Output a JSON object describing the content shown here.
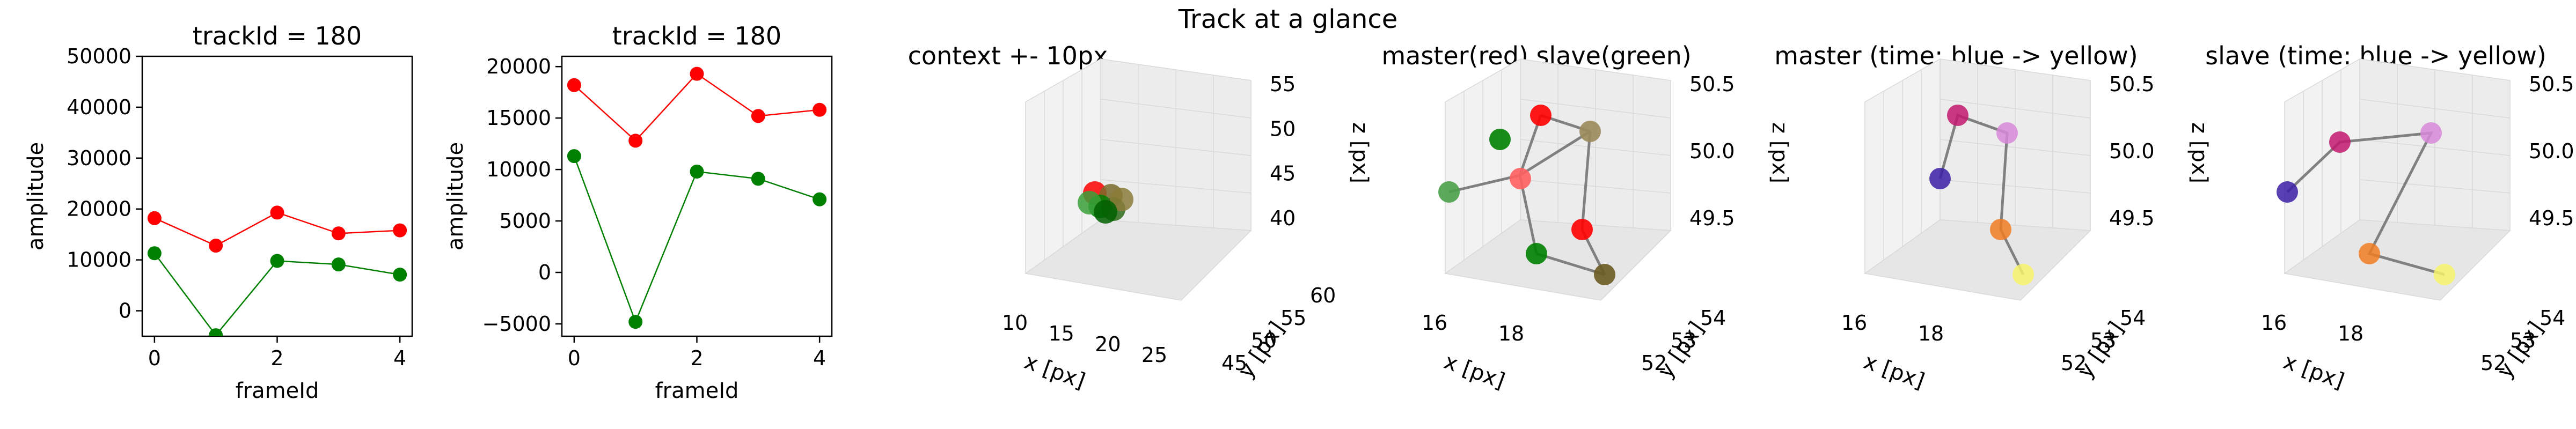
{
  "figure": {
    "suptitle": "Track at a glance"
  },
  "colors": {
    "master": "#ff0000",
    "slave": "#008000",
    "link": "#808080",
    "pane": "#f2f2f2",
    "grid": "#d9d9d9"
  },
  "chart_data": [
    {
      "type": "line",
      "title": "trackId = 180",
      "xlabel": "frameId",
      "ylabel": "amplitude",
      "x": [
        0,
        1,
        2,
        3,
        4
      ],
      "xlim": [
        -0.2,
        4.2
      ],
      "ylim": [
        -5000,
        50000
      ],
      "xticks": [
        "0",
        "2",
        "4"
      ],
      "yticks": [
        "0",
        "10000",
        "20000",
        "30000",
        "40000",
        "50000"
      ],
      "series": [
        {
          "color": "#ff0000",
          "values": [
            18200,
            12800,
            19300,
            15200,
            15800
          ]
        },
        {
          "color": "#008000",
          "values": [
            11300,
            -4800,
            9800,
            9100,
            7100
          ]
        }
      ]
    },
    {
      "type": "line",
      "title": "trackId = 180",
      "xlabel": "frameId",
      "ylabel": "amplitude",
      "x": [
        0,
        1,
        2,
        3,
        4
      ],
      "xlim": [
        -0.2,
        4.2
      ],
      "ylim": [
        -6200,
        21000
      ],
      "xticks": [
        "0",
        "2",
        "4"
      ],
      "yticks": [
        "−5000",
        "0",
        "5000",
        "10000",
        "15000",
        "20000"
      ],
      "series": [
        {
          "color": "#ff0000",
          "values": [
            18200,
            12800,
            19300,
            15200,
            15800
          ]
        },
        {
          "color": "#008000",
          "values": [
            11300,
            -4800,
            9800,
            9100,
            7100
          ]
        }
      ]
    },
    {
      "type": "scatter3d",
      "title": "context +- 10px",
      "xlabel": "x [px]",
      "ylabel": "y [px]",
      "zlabel": "z [px]",
      "xticks": [
        "10",
        "15",
        "20",
        "25"
      ],
      "yticks": [
        "45",
        "50",
        "55",
        "60"
      ],
      "zticks": [
        "40",
        "45",
        "50",
        "55"
      ],
      "note": "dense cluster of master and slave points near x≈22, y≈53, z≈48"
    },
    {
      "type": "scatter3d",
      "title": "master(red) slave(green)",
      "xlabel": "x [px]",
      "ylabel": "y [px]",
      "zlabel": "z [px]",
      "xticks": [
        "16",
        "18"
      ],
      "yticks": [
        "52",
        "53",
        "54"
      ],
      "zticks": [
        "49.5",
        "50.0",
        "50.5"
      ],
      "series": [
        {
          "name": "master",
          "color": "#ff0000",
          "points": 5
        },
        {
          "name": "slave",
          "color": "#008000",
          "points": 5
        }
      ]
    },
    {
      "type": "scatter3d",
      "title": "master (time: blue -> yellow)",
      "xlabel": "x [px]",
      "ylabel": "y [px]",
      "zlabel": "z [px]",
      "xticks": [
        "16",
        "18"
      ],
      "yticks": [
        "52",
        "53",
        "54"
      ],
      "zticks": [
        "49.5",
        "50.0",
        "50.5"
      ],
      "colormap": [
        "#3b1fa6",
        "#c2186f",
        "#d888d8",
        "#f07b22",
        "#f6f36a"
      ]
    },
    {
      "type": "scatter3d",
      "title": "slave (time: blue -> yellow)",
      "xlabel": "x [px]",
      "ylabel": "y [px]",
      "zlabel": "z [px]",
      "xticks": [
        "16",
        "18"
      ],
      "yticks": [
        "52",
        "53",
        "54"
      ],
      "zticks": [
        "49.5",
        "50.0",
        "50.5"
      ],
      "colormap": [
        "#3b1fa6",
        "#c2186f",
        "#d888d8",
        "#f07b22",
        "#f6f36a"
      ]
    }
  ]
}
